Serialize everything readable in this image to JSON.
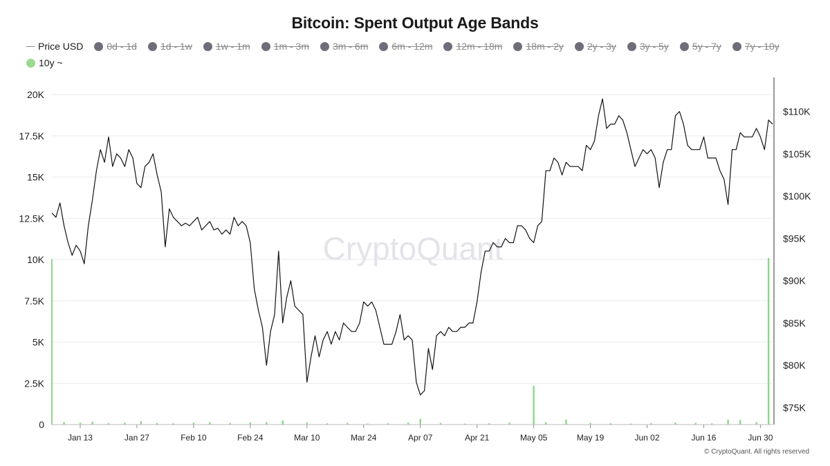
{
  "title": "Bitcoin: Spent Output Age Bands",
  "legend": [
    {
      "label": "Price USD",
      "marker": "line",
      "active": true,
      "color": "#8a8a8a"
    },
    {
      "label": "0d - 1d",
      "marker": "dot",
      "active": false,
      "color": "#6e6e7a"
    },
    {
      "label": "1d - 1w",
      "marker": "dot",
      "active": false,
      "color": "#6e6e7a"
    },
    {
      "label": "1w - 1m",
      "marker": "dot",
      "active": false,
      "color": "#6e6e7a"
    },
    {
      "label": "1m - 3m",
      "marker": "dot",
      "active": false,
      "color": "#6e6e7a"
    },
    {
      "label": "3m - 6m",
      "marker": "dot",
      "active": false,
      "color": "#6e6e7a"
    },
    {
      "label": "6m - 12m",
      "marker": "dot",
      "active": false,
      "color": "#6e6e7a"
    },
    {
      "label": "12m - 18m",
      "marker": "dot",
      "active": false,
      "color": "#6e6e7a"
    },
    {
      "label": "18m - 2y",
      "marker": "dot",
      "active": false,
      "color": "#6e6e7a"
    },
    {
      "label": "2y - 3y",
      "marker": "dot",
      "active": false,
      "color": "#6e6e7a"
    },
    {
      "label": "3y - 5y",
      "marker": "dot",
      "active": false,
      "color": "#6e6e7a"
    },
    {
      "label": "5y - 7y",
      "marker": "dot",
      "active": false,
      "color": "#6e6e7a"
    },
    {
      "label": "7y - 10y",
      "marker": "dot",
      "active": false,
      "color": "#6e6e7a"
    },
    {
      "label": "10y ~",
      "marker": "dot",
      "active": true,
      "color": "#9bd98f"
    }
  ],
  "watermark": "CryptoQuant",
  "footer": "© CryptoQuant. All rights reserved",
  "colors": {
    "price": "#111111",
    "bars": "#8fd68a",
    "grid": "#e9e9e9"
  },
  "chart_data": {
    "type": "line",
    "title": "Bitcoin: Spent Output Age Bands",
    "grid": true,
    "legend_position": "top-left",
    "x_range": [
      "2025-01-06",
      "2025-07-03"
    ],
    "x_ticks": [
      {
        "label": "Jan 13",
        "date": "2025-01-13"
      },
      {
        "label": "Jan 27",
        "date": "2025-01-27"
      },
      {
        "label": "Feb 10",
        "date": "2025-02-10"
      },
      {
        "label": "Feb 24",
        "date": "2025-02-24"
      },
      {
        "label": "Mar 10",
        "date": "2025-03-10"
      },
      {
        "label": "Mar 24",
        "date": "2025-03-24"
      },
      {
        "label": "Apr 07",
        "date": "2025-04-07"
      },
      {
        "label": "Apr 21",
        "date": "2025-04-21"
      },
      {
        "label": "May 05",
        "date": "2025-05-05"
      },
      {
        "label": "May 19",
        "date": "2025-05-19"
      },
      {
        "label": "Jun 02",
        "date": "2025-06-02"
      },
      {
        "label": "Jun 16",
        "date": "2025-06-16"
      },
      {
        "label": "Jun 30",
        "date": "2025-06-30"
      }
    ],
    "y_left": {
      "range": [
        0,
        20000
      ],
      "ticks": [
        {
          "value": 0,
          "label": "0"
        },
        {
          "value": 2500,
          "label": "2.5K"
        },
        {
          "value": 5000,
          "label": "5K"
        },
        {
          "value": 7500,
          "label": "7.5K"
        },
        {
          "value": 10000,
          "label": "10K"
        },
        {
          "value": 12500,
          "label": "12.5K"
        },
        {
          "value": 15000,
          "label": "15K"
        },
        {
          "value": 17500,
          "label": "17.5K"
        },
        {
          "value": 20000,
          "label": "20K"
        }
      ]
    },
    "y_right": {
      "range": [
        73000,
        112000
      ],
      "ticks": [
        {
          "value": 75000,
          "label": "$75K"
        },
        {
          "value": 80000,
          "label": "$80K"
        },
        {
          "value": 85000,
          "label": "$85K"
        },
        {
          "value": 90000,
          "label": "$90K"
        },
        {
          "value": 95000,
          "label": "$95K"
        },
        {
          "value": 100000,
          "label": "$100K"
        },
        {
          "value": 105000,
          "label": "$105K"
        },
        {
          "value": 110000,
          "label": "$110K"
        }
      ]
    },
    "series": [
      {
        "name": "Price USD",
        "axis": "right",
        "kind": "line",
        "points": [
          [
            "2025-01-06",
            98000
          ],
          [
            "2025-01-07",
            97500
          ],
          [
            "2025-01-08",
            99200
          ],
          [
            "2025-01-09",
            96500
          ],
          [
            "2025-01-10",
            94500
          ],
          [
            "2025-01-11",
            93000
          ],
          [
            "2025-01-12",
            94200
          ],
          [
            "2025-01-13",
            93500
          ],
          [
            "2025-01-14",
            92000
          ],
          [
            "2025-01-15",
            96500
          ],
          [
            "2025-01-16",
            99500
          ],
          [
            "2025-01-17",
            103000
          ],
          [
            "2025-01-18",
            105500
          ],
          [
            "2025-01-19",
            104000
          ],
          [
            "2025-01-20",
            107000
          ],
          [
            "2025-01-21",
            103500
          ],
          [
            "2025-01-22",
            105000
          ],
          [
            "2025-01-23",
            104500
          ],
          [
            "2025-01-24",
            103500
          ],
          [
            "2025-01-25",
            105500
          ],
          [
            "2025-01-26",
            104500
          ],
          [
            "2025-01-27",
            101500
          ],
          [
            "2025-01-28",
            101000
          ],
          [
            "2025-01-29",
            103500
          ],
          [
            "2025-01-30",
            104000
          ],
          [
            "2025-01-31",
            105000
          ],
          [
            "2025-02-01",
            102500
          ],
          [
            "2025-02-02",
            100500
          ],
          [
            "2025-02-03",
            94000
          ],
          [
            "2025-02-04",
            98500
          ],
          [
            "2025-02-05",
            97500
          ],
          [
            "2025-02-06",
            97000
          ],
          [
            "2025-02-07",
            96500
          ],
          [
            "2025-02-08",
            96800
          ],
          [
            "2025-02-09",
            96500
          ],
          [
            "2025-02-10",
            97000
          ],
          [
            "2025-02-11",
            97500
          ],
          [
            "2025-02-12",
            96000
          ],
          [
            "2025-02-13",
            96500
          ],
          [
            "2025-02-14",
            97000
          ],
          [
            "2025-02-15",
            96000
          ],
          [
            "2025-02-16",
            96200
          ],
          [
            "2025-02-17",
            95500
          ],
          [
            "2025-02-18",
            96000
          ],
          [
            "2025-02-19",
            95500
          ],
          [
            "2025-02-20",
            97500
          ],
          [
            "2025-02-21",
            96500
          ],
          [
            "2025-02-22",
            97000
          ],
          [
            "2025-02-23",
            96500
          ],
          [
            "2025-02-24",
            94500
          ],
          [
            "2025-02-25",
            89000
          ],
          [
            "2025-02-26",
            86500
          ],
          [
            "2025-02-27",
            84500
          ],
          [
            "2025-02-28",
            80000
          ],
          [
            "2025-03-01",
            84000
          ],
          [
            "2025-03-02",
            86000
          ],
          [
            "2025-03-03",
            93500
          ],
          [
            "2025-03-04",
            85000
          ],
          [
            "2025-03-05",
            88000
          ],
          [
            "2025-03-06",
            90000
          ],
          [
            "2025-03-07",
            87000
          ],
          [
            "2025-03-08",
            86500
          ],
          [
            "2025-03-09",
            86000
          ],
          [
            "2025-03-10",
            78000
          ],
          [
            "2025-03-11",
            81000
          ],
          [
            "2025-03-12",
            83500
          ],
          [
            "2025-03-13",
            81000
          ],
          [
            "2025-03-14",
            83000
          ],
          [
            "2025-03-15",
            84000
          ],
          [
            "2025-03-16",
            82500
          ],
          [
            "2025-03-17",
            84000
          ],
          [
            "2025-03-18",
            83000
          ],
          [
            "2025-03-19",
            85000
          ],
          [
            "2025-03-20",
            84500
          ],
          [
            "2025-03-21",
            84000
          ],
          [
            "2025-03-22",
            84000
          ],
          [
            "2025-03-23",
            85000
          ],
          [
            "2025-03-24",
            87500
          ],
          [
            "2025-03-25",
            87000
          ],
          [
            "2025-03-26",
            87500
          ],
          [
            "2025-03-27",
            86500
          ],
          [
            "2025-03-28",
            84500
          ],
          [
            "2025-03-29",
            82500
          ],
          [
            "2025-03-30",
            82500
          ],
          [
            "2025-03-31",
            82500
          ],
          [
            "2025-04-01",
            84000
          ],
          [
            "2025-04-02",
            86000
          ],
          [
            "2025-04-03",
            83000
          ],
          [
            "2025-04-04",
            83500
          ],
          [
            "2025-04-05",
            83000
          ],
          [
            "2025-04-06",
            78000
          ],
          [
            "2025-04-07",
            76500
          ],
          [
            "2025-04-08",
            77000
          ],
          [
            "2025-04-09",
            82000
          ],
          [
            "2025-04-10",
            79500
          ],
          [
            "2025-04-11",
            83500
          ],
          [
            "2025-04-12",
            84000
          ],
          [
            "2025-04-13",
            83500
          ],
          [
            "2025-04-14",
            84500
          ],
          [
            "2025-04-15",
            84000
          ],
          [
            "2025-04-16",
            84000
          ],
          [
            "2025-04-17",
            84500
          ],
          [
            "2025-04-18",
            84500
          ],
          [
            "2025-04-19",
            85000
          ],
          [
            "2025-04-20",
            85000
          ],
          [
            "2025-04-21",
            87500
          ],
          [
            "2025-04-22",
            91000
          ],
          [
            "2025-04-23",
            93500
          ],
          [
            "2025-04-24",
            93500
          ],
          [
            "2025-04-25",
            94500
          ],
          [
            "2025-04-26",
            94000
          ],
          [
            "2025-04-27",
            94000
          ],
          [
            "2025-04-28",
            95000
          ],
          [
            "2025-04-29",
            94500
          ],
          [
            "2025-04-30",
            94500
          ],
          [
            "2025-05-01",
            96500
          ],
          [
            "2025-05-02",
            96500
          ],
          [
            "2025-05-03",
            96000
          ],
          [
            "2025-05-04",
            95000
          ],
          [
            "2025-05-05",
            94500
          ],
          [
            "2025-05-06",
            96500
          ],
          [
            "2025-05-07",
            97000
          ],
          [
            "2025-05-08",
            103000
          ],
          [
            "2025-05-09",
            103000
          ],
          [
            "2025-05-10",
            104500
          ],
          [
            "2025-05-11",
            104000
          ],
          [
            "2025-05-12",
            102500
          ],
          [
            "2025-05-13",
            104000
          ],
          [
            "2025-05-14",
            103500
          ],
          [
            "2025-05-15",
            103500
          ],
          [
            "2025-05-16",
            103500
          ],
          [
            "2025-05-17",
            103000
          ],
          [
            "2025-05-18",
            106000
          ],
          [
            "2025-05-19",
            105500
          ],
          [
            "2025-05-20",
            106500
          ],
          [
            "2025-05-21",
            109500
          ],
          [
            "2025-05-22",
            111500
          ],
          [
            "2025-05-23",
            108000
          ],
          [
            "2025-05-24",
            108500
          ],
          [
            "2025-05-25",
            108500
          ],
          [
            "2025-05-26",
            109500
          ],
          [
            "2025-05-27",
            109000
          ],
          [
            "2025-05-28",
            107500
          ],
          [
            "2025-05-29",
            105500
          ],
          [
            "2025-05-30",
            103500
          ],
          [
            "2025-05-31",
            104500
          ],
          [
            "2025-06-01",
            105500
          ],
          [
            "2025-06-02",
            105000
          ],
          [
            "2025-06-03",
            105500
          ],
          [
            "2025-06-04",
            104500
          ],
          [
            "2025-06-05",
            101000
          ],
          [
            "2025-06-06",
            104000
          ],
          [
            "2025-06-07",
            105500
          ],
          [
            "2025-06-08",
            105500
          ],
          [
            "2025-06-09",
            109500
          ],
          [
            "2025-06-10",
            110000
          ],
          [
            "2025-06-11",
            108500
          ],
          [
            "2025-06-12",
            106000
          ],
          [
            "2025-06-13",
            105500
          ],
          [
            "2025-06-14",
            105500
          ],
          [
            "2025-06-15",
            105500
          ],
          [
            "2025-06-16",
            107000
          ],
          [
            "2025-06-17",
            104500
          ],
          [
            "2025-06-18",
            104500
          ],
          [
            "2025-06-19",
            104500
          ],
          [
            "2025-06-20",
            103000
          ],
          [
            "2025-06-21",
            102000
          ],
          [
            "2025-06-22",
            99000
          ],
          [
            "2025-06-23",
            105500
          ],
          [
            "2025-06-24",
            105500
          ],
          [
            "2025-06-25",
            107500
          ],
          [
            "2025-06-26",
            107000
          ],
          [
            "2025-06-27",
            107000
          ],
          [
            "2025-06-28",
            107000
          ],
          [
            "2025-06-29",
            108000
          ],
          [
            "2025-06-30",
            107000
          ],
          [
            "2025-07-01",
            105500
          ],
          [
            "2025-07-02",
            109000
          ],
          [
            "2025-07-03",
            108500
          ]
        ]
      },
      {
        "name": "10y ~",
        "axis": "left",
        "kind": "bar",
        "points": [
          [
            "2025-01-06",
            50
          ],
          [
            "2025-01-09",
            150
          ],
          [
            "2025-01-13",
            120
          ],
          [
            "2025-01-16",
            180
          ],
          [
            "2025-01-20",
            90
          ],
          [
            "2025-01-24",
            120
          ],
          [
            "2025-01-28",
            200
          ],
          [
            "2025-02-01",
            100
          ],
          [
            "2025-02-05",
            80
          ],
          [
            "2025-02-10",
            120
          ],
          [
            "2025-02-14",
            150
          ],
          [
            "2025-02-19",
            100
          ],
          [
            "2025-02-24",
            130
          ],
          [
            "2025-02-28",
            150
          ],
          [
            "2025-03-04",
            250
          ],
          [
            "2025-03-10",
            120
          ],
          [
            "2025-03-15",
            80
          ],
          [
            "2025-03-20",
            100
          ],
          [
            "2025-03-25",
            60
          ],
          [
            "2025-03-30",
            90
          ],
          [
            "2025-04-04",
            120
          ],
          [
            "2025-04-07",
            350
          ],
          [
            "2025-04-12",
            100
          ],
          [
            "2025-04-18",
            60
          ],
          [
            "2025-04-24",
            80
          ],
          [
            "2025-04-29",
            120
          ],
          [
            "2025-05-05",
            2350
          ],
          [
            "2025-05-08",
            150
          ],
          [
            "2025-05-13",
            300
          ],
          [
            "2025-05-19",
            100
          ],
          [
            "2025-05-24",
            80
          ],
          [
            "2025-05-29",
            60
          ],
          [
            "2025-06-03",
            90
          ],
          [
            "2025-06-09",
            120
          ],
          [
            "2025-06-14",
            100
          ],
          [
            "2025-06-18",
            70
          ],
          [
            "2025-06-22",
            300
          ],
          [
            "2025-06-25",
            280
          ],
          [
            "2025-06-29",
            150
          ],
          [
            "2025-07-02",
            10100
          ]
        ]
      }
    ]
  }
}
